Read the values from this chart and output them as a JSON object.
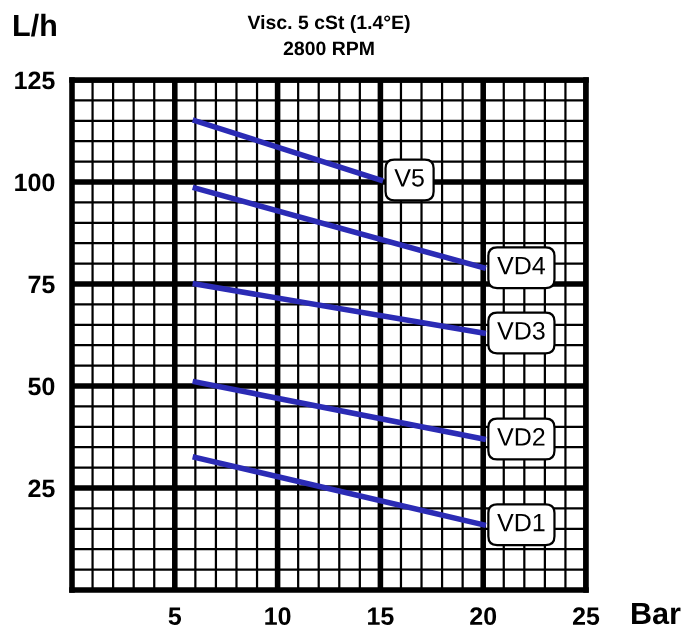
{
  "chart_data": {
    "type": "line",
    "title": "Visc. 5 cSt (1.4°E)",
    "subtitle": "2800 RPM",
    "xlabel": "Bar",
    "ylabel": "L/h",
    "xlim": [
      0,
      25
    ],
    "ylim": [
      0,
      125
    ],
    "xticks": [
      5,
      10,
      15,
      20,
      25
    ],
    "yticks": [
      25,
      50,
      75,
      100,
      125
    ],
    "grid": true,
    "marker": "none",
    "line_style": "solid",
    "series": [
      {
        "name": "V5",
        "color": "#2b2bb5",
        "x": [
          6,
          15
        ],
        "values": [
          115,
          100.5
        ]
      },
      {
        "name": "VD4",
        "color": "#2b2bb5",
        "x": [
          6,
          20
        ],
        "values": [
          98.5,
          79
        ]
      },
      {
        "name": "VD3",
        "color": "#2b2bb5",
        "x": [
          6,
          20
        ],
        "values": [
          75,
          63
        ]
      },
      {
        "name": "VD2",
        "color": "#2b2bb5",
        "x": [
          6,
          20
        ],
        "values": [
          51,
          37
        ]
      },
      {
        "name": "VD1",
        "color": "#2b2bb5",
        "x": [
          6,
          20
        ],
        "values": [
          32.5,
          16
        ]
      }
    ]
  }
}
